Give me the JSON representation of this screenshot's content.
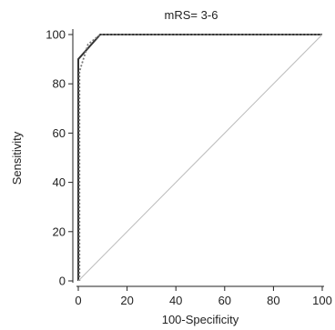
{
  "chart_data": {
    "type": "line",
    "title": "mRS= 3-6",
    "xlabel": "100-Specificity",
    "ylabel": "Sensitivity",
    "xlim": [
      0,
      100
    ],
    "ylim": [
      0,
      100
    ],
    "x_ticks": [
      "0",
      "20",
      "40",
      "60",
      "80",
      "100"
    ],
    "y_ticks": [
      "0",
      "20",
      "40",
      "60",
      "80",
      "100"
    ],
    "grid": false,
    "series": [
      {
        "style": "solid",
        "color": "#333333",
        "x": [
          0,
          0,
          0,
          9,
          100
        ],
        "y": [
          0,
          76,
          90,
          100,
          100
        ]
      },
      {
        "style": "dotted",
        "color": "#777777",
        "x": [
          0.5,
          0.5,
          4,
          9,
          100
        ],
        "y": [
          0,
          85,
          96,
          100,
          100
        ]
      },
      {
        "style": "reference",
        "color": "#bbbbbb",
        "x": [
          0,
          100
        ],
        "y": [
          0,
          100
        ]
      }
    ]
  }
}
